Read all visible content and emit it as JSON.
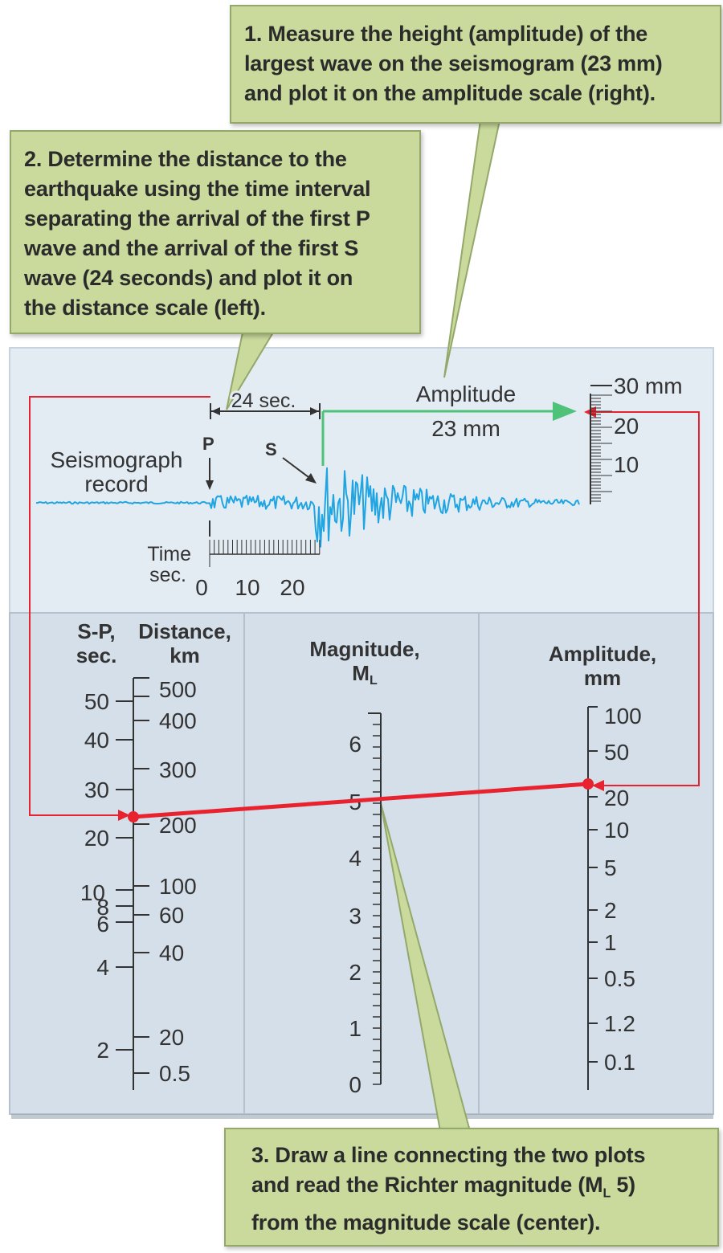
{
  "callouts": {
    "step1": [
      "1. Measure the height (amplitude) of the",
      "largest wave on the seismogram (23 mm)",
      "and plot it on the amplitude scale (right)."
    ],
    "step2": [
      "2. Determine the distance to the",
      "earthquake using the time interval",
      "separating the arrival of the first P",
      "wave and the arrival of the first S",
      "wave (24 seconds) and plot it on",
      "the distance scale (left)."
    ],
    "step3": [
      "3. Draw a line connecting the two plots",
      "and read the Richter magnitude (M",
      "L",
      " 5)",
      "from the magnitude scale (center)."
    ]
  },
  "seismogram": {
    "record_label": [
      "Seismograph",
      "record"
    ],
    "p_label": "P",
    "s_label": "S",
    "interval_label": "24 sec.",
    "amplitude_label": "Amplitude",
    "amplitude_value": "23 mm",
    "time_label": [
      "Time",
      "sec."
    ],
    "time_ticks": [
      "0",
      "10",
      "20"
    ],
    "amp_scale": [
      "30 mm",
      "20",
      "10"
    ]
  },
  "scales": {
    "sp_header": [
      "S-P,",
      "sec."
    ],
    "distance_header": [
      "Distance,",
      "km"
    ],
    "magnitude_header": [
      "Magnitude,",
      "M",
      "L"
    ],
    "amplitude_header": [
      "Amplitude,",
      "mm"
    ],
    "sp_ticks": [
      "50",
      "40",
      "30",
      "20",
      "10",
      "8",
      "6",
      "4",
      "2"
    ],
    "distance_ticks": [
      "500",
      "400",
      "300",
      "200",
      "100",
      "60",
      "40",
      "20",
      "0.5"
    ],
    "magnitude_ticks": [
      "6",
      "5",
      "4",
      "3",
      "2",
      "1",
      "0"
    ],
    "amplitude_ticks": [
      "100",
      "50",
      "20",
      "10",
      "5",
      "2",
      "1",
      "0.5",
      "1.2",
      "0.1"
    ]
  },
  "colors": {
    "callout_fill": "#c9da9c",
    "red_line": "#e8232f",
    "green_arrow": "#4fc27a",
    "wave": "#1fa5e2",
    "panel": "#d4dfea"
  }
}
